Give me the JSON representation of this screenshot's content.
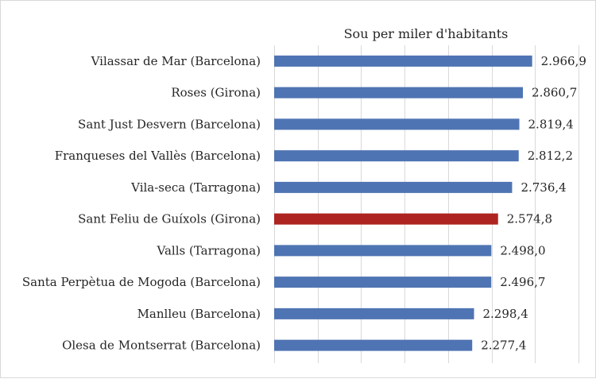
{
  "chart_data": {
    "type": "bar",
    "orientation": "horizontal",
    "title": "Sou per miler d'habitants",
    "categories": [
      "Vilassar de Mar (Barcelona)",
      "Roses (Girona)",
      "Sant Just Desvern (Barcelona)",
      "Franqueses del Vallès (Barcelona)",
      "Vila-seca (Tarragona)",
      "Sant Feliu de Guíxols (Girona)",
      "Valls (Tarragona)",
      "Santa Perpètua de Mogoda (Barcelona)",
      "Manlleu (Barcelona)",
      "Olesa de Montserrat (Barcelona)"
    ],
    "values": [
      2966.9,
      2860.7,
      2819.4,
      2812.2,
      2736.4,
      2574.8,
      2498.0,
      2496.7,
      2298.4,
      2277.4
    ],
    "value_labels": [
      "2.966,9",
      "2.860,7",
      "2.819,4",
      "2.812,2",
      "2.736,4",
      "2.574,8",
      "2.498,0",
      "2.496,7",
      "2.298,4",
      "2.277,4"
    ],
    "highlight_index": 5,
    "xlim": [
      0,
      3500
    ],
    "grid": true,
    "x_tick_labels_visible": false,
    "colors": {
      "bar": "#4f74b3",
      "highlight": "#ae2420",
      "grid": "#d9d9d9",
      "text": "#262626"
    }
  }
}
